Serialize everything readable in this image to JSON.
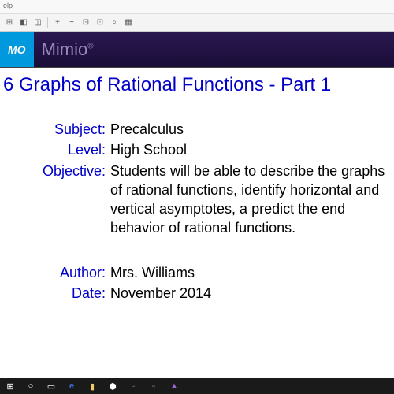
{
  "menubar": {
    "text": "elp"
  },
  "toolbar": {
    "icons": [
      "⊞",
      "◧",
      "◫",
      "│",
      "+",
      "−",
      "⊡",
      "⊡",
      "⌕",
      "▦"
    ]
  },
  "header": {
    "dymo": "MO",
    "mimio": "Mimio"
  },
  "slide": {
    "title": "6 Graphs of Rational Functions - Part 1",
    "rows": [
      {
        "label": "Subject:",
        "value": "Precalculus"
      },
      {
        "label": "Level:",
        "value": "High School"
      },
      {
        "label": "Objective:",
        "value": "Students will be able to describe the graphs of rational functions, identify horizontal and vertical asymptotes, a predict the end behavior of rational functions."
      }
    ],
    "rows2": [
      {
        "label": "Author:",
        "value": "Mrs. Williams"
      },
      {
        "label": "Date:",
        "value": "November 2014"
      }
    ]
  },
  "colors": {
    "title_color": "#0000c8",
    "label_color": "#0000c8",
    "value_color": "#000000",
    "header_bg": "#1a0d38",
    "dymo_bg": "#0099dd"
  }
}
